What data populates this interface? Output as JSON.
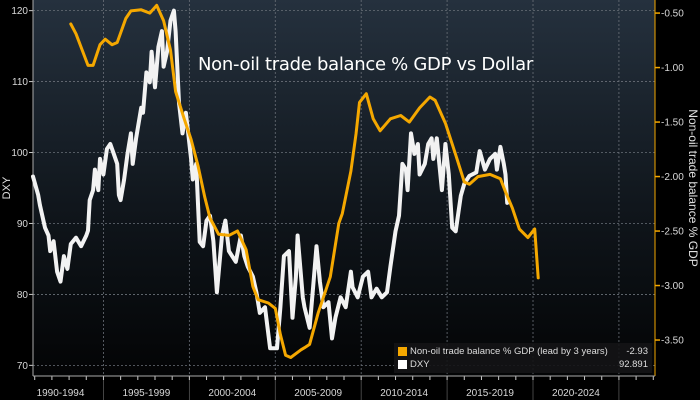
{
  "chart_data": {
    "type": "line",
    "title": "Non-oil trade balance % GDP vs Dollar",
    "xlabel": "",
    "x_tick_labels": [
      "1990-1994",
      "1995-1999",
      "2000-2004",
      "2005-2009",
      "2010-2014",
      "2015-2019",
      "2020-2024"
    ],
    "xlim": [
      1990.9,
      2027.1
    ],
    "y_left": {
      "label": "DXY",
      "lim": [
        68.5,
        121.5
      ],
      "ticks": [
        "70",
        "80",
        "90",
        "100",
        "110",
        "120"
      ]
    },
    "y_right": {
      "label": "Non-oil trade balance % GDP",
      "lim": [
        -3.83,
        -0.38
      ],
      "ticks": [
        "-0.50",
        "-1.00",
        "-1.50",
        "-2.00",
        "-2.50",
        "-3.00",
        "-3.50"
      ]
    },
    "grid": true,
    "legend_position": "bottom-right",
    "series": [
      {
        "name": "Non-oil trade balance % GDP (lead by 3 years)",
        "axis": "right",
        "color": "#f5a800",
        "last_value": "-2.93",
        "x": [
          1993.1,
          1993.4,
          1994.1,
          1994.4,
          1994.8,
          1995.1,
          1995.5,
          1995.8,
          1996.3,
          1996.6,
          1997.2,
          1997.7,
          1998.1,
          1998.5,
          1998.9,
          1999.2,
          1999.7,
          2000.1,
          2000.5,
          2000.9,
          2001.2,
          2001.7,
          2002.3,
          2002.8,
          2003.3,
          2003.7,
          2004.0,
          2004.6,
          2005.0,
          2005.3,
          2005.6,
          2005.9,
          2006.5,
          2006.7,
          2007.0,
          2007.5,
          2008.2,
          2008.7,
          2008.9,
          2009.4,
          2009.7,
          2009.9,
          2010.3,
          2010.7,
          2011.1,
          2011.7,
          2012.3,
          2012.8,
          2013.4,
          2014.0,
          2014.3,
          2014.9,
          2015.5,
          2016.0,
          2016.3,
          2016.8,
          2017.5,
          2018.1,
          2018.4,
          2018.8,
          2019.2,
          2019.7,
          2020.1,
          2020.3
        ],
        "values": [
          -0.6,
          -0.69,
          -0.98,
          -0.98,
          -0.79,
          -0.74,
          -0.79,
          -0.77,
          -0.55,
          -0.48,
          -0.47,
          -0.5,
          -0.43,
          -0.57,
          -0.84,
          -1.22,
          -1.47,
          -1.66,
          -1.9,
          -2.19,
          -2.38,
          -2.53,
          -2.54,
          -2.5,
          -2.67,
          -3.01,
          -3.13,
          -3.16,
          -3.21,
          -3.45,
          -3.64,
          -3.66,
          -3.59,
          -3.57,
          -3.54,
          -3.25,
          -2.92,
          -2.43,
          -2.34,
          -1.95,
          -1.61,
          -1.32,
          -1.24,
          -1.47,
          -1.58,
          -1.47,
          -1.44,
          -1.5,
          -1.37,
          -1.27,
          -1.3,
          -1.51,
          -1.8,
          -2.05,
          -2.07,
          -2.0,
          -1.98,
          -2.02,
          -2.14,
          -2.29,
          -2.48,
          -2.56,
          -2.48,
          -2.93
        ]
      },
      {
        "name": "DXY",
        "axis": "left",
        "color": "#f2f2f2",
        "last_value": "92.891",
        "x": [
          1990.9,
          1991.2,
          1991.3,
          1991.6,
          1991.8,
          1991.9,
          1992.1,
          1992.3,
          1992.5,
          1992.7,
          1992.9,
          1993.1,
          1993.4,
          1993.7,
          1994.0,
          1994.1,
          1994.2,
          1994.4,
          1994.5,
          1994.7,
          1994.8,
          1995.0,
          1995.2,
          1995.4,
          1995.6,
          1995.8,
          1995.9,
          1996.0,
          1996.2,
          1996.4,
          1996.6,
          1996.7,
          1996.9,
          1997.2,
          1997.3,
          1997.5,
          1997.7,
          1997.8,
          1998.0,
          1998.2,
          1998.4,
          1998.5,
          1998.7,
          1998.9,
          1999.1,
          1999.2,
          1999.4,
          1999.6,
          1999.8,
          2000.1,
          2000.2,
          2000.4,
          2000.6,
          2000.8,
          2001.0,
          2001.2,
          2001.4,
          2001.6,
          2001.9,
          2002.1,
          2002.3,
          2002.7,
          2003.0,
          2003.2,
          2003.4,
          2003.7,
          2003.9,
          2004.1,
          2004.4,
          2004.7,
          2005.1,
          2005.3,
          2005.5,
          2005.8,
          2006.0,
          2006.2,
          2006.3,
          2006.6,
          2006.7,
          2007.0,
          2007.2,
          2007.4,
          2007.6,
          2007.8,
          2008.1,
          2008.3,
          2008.5,
          2008.8,
          2009.1,
          2009.4,
          2009.5,
          2009.8,
          2010.1,
          2010.4,
          2010.6,
          2010.9,
          2011.2,
          2011.5,
          2011.7,
          2012.0,
          2012.2,
          2012.3,
          2012.4,
          2012.6,
          2012.7,
          2012.9,
          2013.1,
          2013.3,
          2013.4,
          2013.7,
          2013.9,
          2014.1,
          2014.2,
          2014.4,
          2014.7,
          2014.9,
          2015.1,
          2015.3,
          2015.5,
          2015.8,
          2016.0,
          2016.3,
          2016.7,
          2016.9,
          2017.2,
          2017.5,
          2017.8,
          2017.9,
          2018.1,
          2018.3,
          2018.4,
          2018.5
        ],
        "values": [
          96.6,
          94.0,
          92.6,
          89.4,
          88.3,
          86.1,
          87.5,
          83.2,
          81.8,
          85.4,
          83.6,
          87.1,
          88.0,
          86.8,
          88.3,
          89.0,
          93.3,
          94.7,
          97.6,
          94.7,
          99.1,
          96.9,
          100.5,
          101.2,
          99.8,
          98.4,
          94.0,
          93.3,
          96.2,
          99.8,
          102.7,
          98.4,
          102.0,
          106.3,
          105.6,
          111.3,
          109.9,
          114.2,
          109.2,
          114.9,
          117.1,
          112.1,
          114.2,
          118.6,
          120.0,
          117.1,
          107.0,
          102.7,
          105.6,
          99.1,
          96.2,
          98.4,
          87.4,
          86.8,
          90.4,
          91.1,
          87.5,
          80.3,
          88.3,
          90.4,
          86.1,
          84.6,
          88.3,
          85.4,
          83.9,
          82.5,
          80.3,
          77.4,
          78.2,
          72.4,
          72.4,
          78.2,
          85.4,
          86.1,
          76.7,
          82.5,
          88.3,
          79.6,
          78.2,
          75.3,
          81.0,
          86.8,
          81.8,
          78.2,
          78.9,
          73.8,
          76.7,
          79.6,
          78.2,
          83.2,
          81.0,
          79.6,
          82.5,
          83.2,
          79.6,
          80.8,
          79.6,
          80.3,
          83.9,
          88.9,
          91.1,
          94.7,
          98.4,
          97.6,
          94.7,
          102.7,
          99.8,
          101.2,
          96.9,
          98.4,
          101.2,
          102.0,
          99.1,
          102.0,
          94.7,
          101.2,
          96.9,
          89.4,
          88.9,
          93.9,
          95.6,
          96.7,
          97.2,
          100.2,
          97.6,
          99.1,
          99.8,
          97.6,
          100.8,
          98.4,
          96.9,
          92.9
        ]
      }
    ]
  }
}
